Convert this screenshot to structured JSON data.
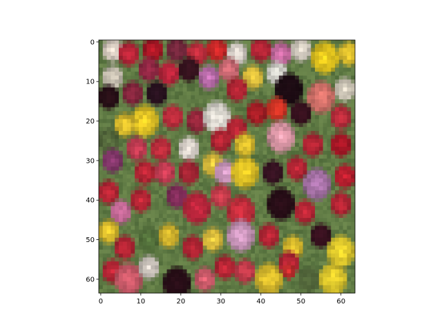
{
  "chart_data": {
    "type": "heatmap",
    "kind": "image",
    "title": "",
    "xlabel": "",
    "ylabel": "",
    "image_size": [
      64,
      64
    ],
    "xlim": [
      -0.5,
      63.5
    ],
    "ylim": [
      63.5,
      -0.5
    ],
    "x_ticks": [
      0,
      10,
      20,
      30,
      40,
      50,
      60
    ],
    "y_ticks": [
      0,
      10,
      20,
      30,
      40,
      50,
      60
    ],
    "x_tick_labels": [
      "0",
      "10",
      "20",
      "30",
      "40",
      "50",
      "60"
    ],
    "y_tick_labels": [
      "0",
      "10",
      "20",
      "30",
      "40",
      "50",
      "60"
    ],
    "grid": false,
    "background_color": "#5f7a44",
    "blobs": [
      {
        "x": 3,
        "y": 2,
        "r": 3,
        "c": "#e0d4c8"
      },
      {
        "x": 7,
        "y": 3,
        "r": 3,
        "c": "#c4283c"
      },
      {
        "x": 13,
        "y": 2,
        "r": 3,
        "c": "#b01826"
      },
      {
        "x": 19,
        "y": 2,
        "r": 3,
        "c": "#7a2a40"
      },
      {
        "x": 24,
        "y": 3,
        "r": 3,
        "c": "#c83040"
      },
      {
        "x": 29,
        "y": 2,
        "r": 3,
        "c": "#d02a2a"
      },
      {
        "x": 34,
        "y": 3,
        "r": 3,
        "c": "#e8e0d8"
      },
      {
        "x": 40,
        "y": 2,
        "r": 3,
        "c": "#c0283a"
      },
      {
        "x": 45,
        "y": 3,
        "r": 3,
        "c": "#d070a8"
      },
      {
        "x": 50,
        "y": 2,
        "r": 3,
        "c": "#e0d8cc"
      },
      {
        "x": 56,
        "y": 4,
        "r": 4,
        "c": "#f0d020"
      },
      {
        "x": 62,
        "y": 3,
        "r": 3,
        "c": "#e8c830"
      },
      {
        "x": 12,
        "y": 7,
        "r": 3,
        "c": "#9a2a48"
      },
      {
        "x": 17,
        "y": 8,
        "r": 3,
        "c": "#c82840"
      },
      {
        "x": 22,
        "y": 7,
        "r": 3,
        "c": "#3a1420"
      },
      {
        "x": 27,
        "y": 9,
        "r": 3,
        "c": "#c070b0"
      },
      {
        "x": 32,
        "y": 7,
        "r": 3,
        "c": "#d8707a"
      },
      {
        "x": 38,
        "y": 9,
        "r": 3,
        "c": "#e8c840"
      },
      {
        "x": 44,
        "y": 8,
        "r": 3,
        "c": "#e0e0d8"
      },
      {
        "x": 3,
        "y": 9,
        "r": 3,
        "c": "#d8d0c0"
      },
      {
        "x": 2,
        "y": 14,
        "r": 3,
        "c": "#2a1018"
      },
      {
        "x": 8,
        "y": 13,
        "r": 3,
        "c": "#8a2840"
      },
      {
        "x": 14,
        "y": 13,
        "r": 3,
        "c": "#2a1220"
      },
      {
        "x": 34,
        "y": 12,
        "r": 3,
        "c": "#c02838"
      },
      {
        "x": 47,
        "y": 12,
        "r": 4,
        "c": "#1e0c14"
      },
      {
        "x": 55,
        "y": 14,
        "r": 4,
        "c": "#e07870"
      },
      {
        "x": 61,
        "y": 12,
        "r": 3,
        "c": "#e0d8c8"
      },
      {
        "x": 11,
        "y": 20,
        "r": 4,
        "c": "#f0d028"
      },
      {
        "x": 6,
        "y": 21,
        "r": 3,
        "c": "#e8c830"
      },
      {
        "x": 18,
        "y": 19,
        "r": 3,
        "c": "#c83040"
      },
      {
        "x": 24,
        "y": 20,
        "r": 3,
        "c": "#a02a40"
      },
      {
        "x": 29,
        "y": 19,
        "r": 4,
        "c": "#e8e4dc"
      },
      {
        "x": 34,
        "y": 22,
        "r": 3,
        "c": "#c02838"
      },
      {
        "x": 39,
        "y": 18,
        "r": 3,
        "c": "#b02028"
      },
      {
        "x": 44,
        "y": 17,
        "r": 3,
        "c": "#e03828"
      },
      {
        "x": 50,
        "y": 18,
        "r": 3,
        "c": "#3a1220"
      },
      {
        "x": 60,
        "y": 19,
        "r": 3,
        "c": "#c83040"
      },
      {
        "x": 2,
        "y": 25,
        "r": 3,
        "c": "#5a7040"
      },
      {
        "x": 3,
        "y": 30,
        "r": 3,
        "c": "#8a3a70"
      },
      {
        "x": 9,
        "y": 27,
        "r": 3,
        "c": "#d04058"
      },
      {
        "x": 15,
        "y": 27,
        "r": 3,
        "c": "#c83040"
      },
      {
        "x": 22,
        "y": 27,
        "r": 3,
        "c": "#e8e0d8"
      },
      {
        "x": 30,
        "y": 25,
        "r": 3,
        "c": "#c02838"
      },
      {
        "x": 36,
        "y": 26,
        "r": 3,
        "c": "#e8c830"
      },
      {
        "x": 45,
        "y": 24,
        "r": 4,
        "c": "#e8a0b0"
      },
      {
        "x": 53,
        "y": 26,
        "r": 3,
        "c": "#c02838"
      },
      {
        "x": 60,
        "y": 26,
        "r": 3,
        "c": "#b01828"
      },
      {
        "x": 11,
        "y": 33,
        "r": 3,
        "c": "#c02838"
      },
      {
        "x": 16,
        "y": 33,
        "r": 3,
        "c": "#d04058"
      },
      {
        "x": 22,
        "y": 33,
        "r": 3,
        "c": "#b02838"
      },
      {
        "x": 28,
        "y": 31,
        "r": 3,
        "c": "#e8c840"
      },
      {
        "x": 31,
        "y": 33,
        "r": 3,
        "c": "#d8a0c8"
      },
      {
        "x": 36,
        "y": 33,
        "r": 4,
        "c": "#f0d028"
      },
      {
        "x": 43,
        "y": 33,
        "r": 3,
        "c": "#3a1424"
      },
      {
        "x": 49,
        "y": 32,
        "r": 3,
        "c": "#c02838"
      },
      {
        "x": 54,
        "y": 36,
        "r": 4,
        "c": "#b078b0"
      },
      {
        "x": 61,
        "y": 34,
        "r": 3,
        "c": "#c02030"
      },
      {
        "x": 2,
        "y": 38,
        "r": 3,
        "c": "#c02838"
      },
      {
        "x": 5,
        "y": 43,
        "r": 3,
        "c": "#d070a0"
      },
      {
        "x": 10,
        "y": 40,
        "r": 3,
        "c": "#c02838"
      },
      {
        "x": 19,
        "y": 39,
        "r": 3,
        "c": "#8a3060"
      },
      {
        "x": 24,
        "y": 42,
        "r": 4,
        "c": "#c82840"
      },
      {
        "x": 30,
        "y": 39,
        "r": 3,
        "c": "#d04050"
      },
      {
        "x": 35,
        "y": 43,
        "r": 4,
        "c": "#d03040"
      },
      {
        "x": 45,
        "y": 41,
        "r": 4,
        "c": "#2a0e18"
      },
      {
        "x": 51,
        "y": 43,
        "r": 3,
        "c": "#c02838"
      },
      {
        "x": 60,
        "y": 41,
        "r": 3,
        "c": "#c02838"
      },
      {
        "x": 2,
        "y": 48,
        "r": 3,
        "c": "#e8c830"
      },
      {
        "x": 6,
        "y": 52,
        "r": 3,
        "c": "#c02838"
      },
      {
        "x": 12,
        "y": 50,
        "r": 3,
        "c": "#5a7a40"
      },
      {
        "x": 17,
        "y": 49,
        "r": 3,
        "c": "#e0c030"
      },
      {
        "x": 23,
        "y": 52,
        "r": 3,
        "c": "#c02838"
      },
      {
        "x": 28,
        "y": 50,
        "r": 3,
        "c": "#e8c840"
      },
      {
        "x": 35,
        "y": 49,
        "r": 4,
        "c": "#d8a0c8"
      },
      {
        "x": 42,
        "y": 49,
        "r": 3,
        "c": "#c02838"
      },
      {
        "x": 48,
        "y": 52,
        "r": 3,
        "c": "#e8c830"
      },
      {
        "x": 55,
        "y": 49,
        "r": 3,
        "c": "#3a1220"
      },
      {
        "x": 60,
        "y": 53,
        "r": 4,
        "c": "#f0d830"
      },
      {
        "x": 3,
        "y": 58,
        "r": 3,
        "c": "#c02838"
      },
      {
        "x": 7,
        "y": 60,
        "r": 4,
        "c": "#d86070"
      },
      {
        "x": 12,
        "y": 57,
        "r": 3,
        "c": "#d8d0c8"
      },
      {
        "x": 19,
        "y": 61,
        "r": 4,
        "c": "#2a0e18"
      },
      {
        "x": 26,
        "y": 60,
        "r": 3,
        "c": "#d86070"
      },
      {
        "x": 31,
        "y": 57,
        "r": 3,
        "c": "#c02838"
      },
      {
        "x": 36,
        "y": 58,
        "r": 3,
        "c": "#d04050"
      },
      {
        "x": 42,
        "y": 60,
        "r": 4,
        "c": "#e8c830"
      },
      {
        "x": 47,
        "y": 56,
        "r": 3,
        "c": "#c02838"
      },
      {
        "x": 52,
        "y": 60,
        "r": 3,
        "c": "#5a7040"
      },
      {
        "x": 58,
        "y": 60,
        "r": 4,
        "c": "#f0d830"
      },
      {
        "x": 47,
        "y": 58,
        "r": 2,
        "c": "#d03030"
      }
    ]
  }
}
